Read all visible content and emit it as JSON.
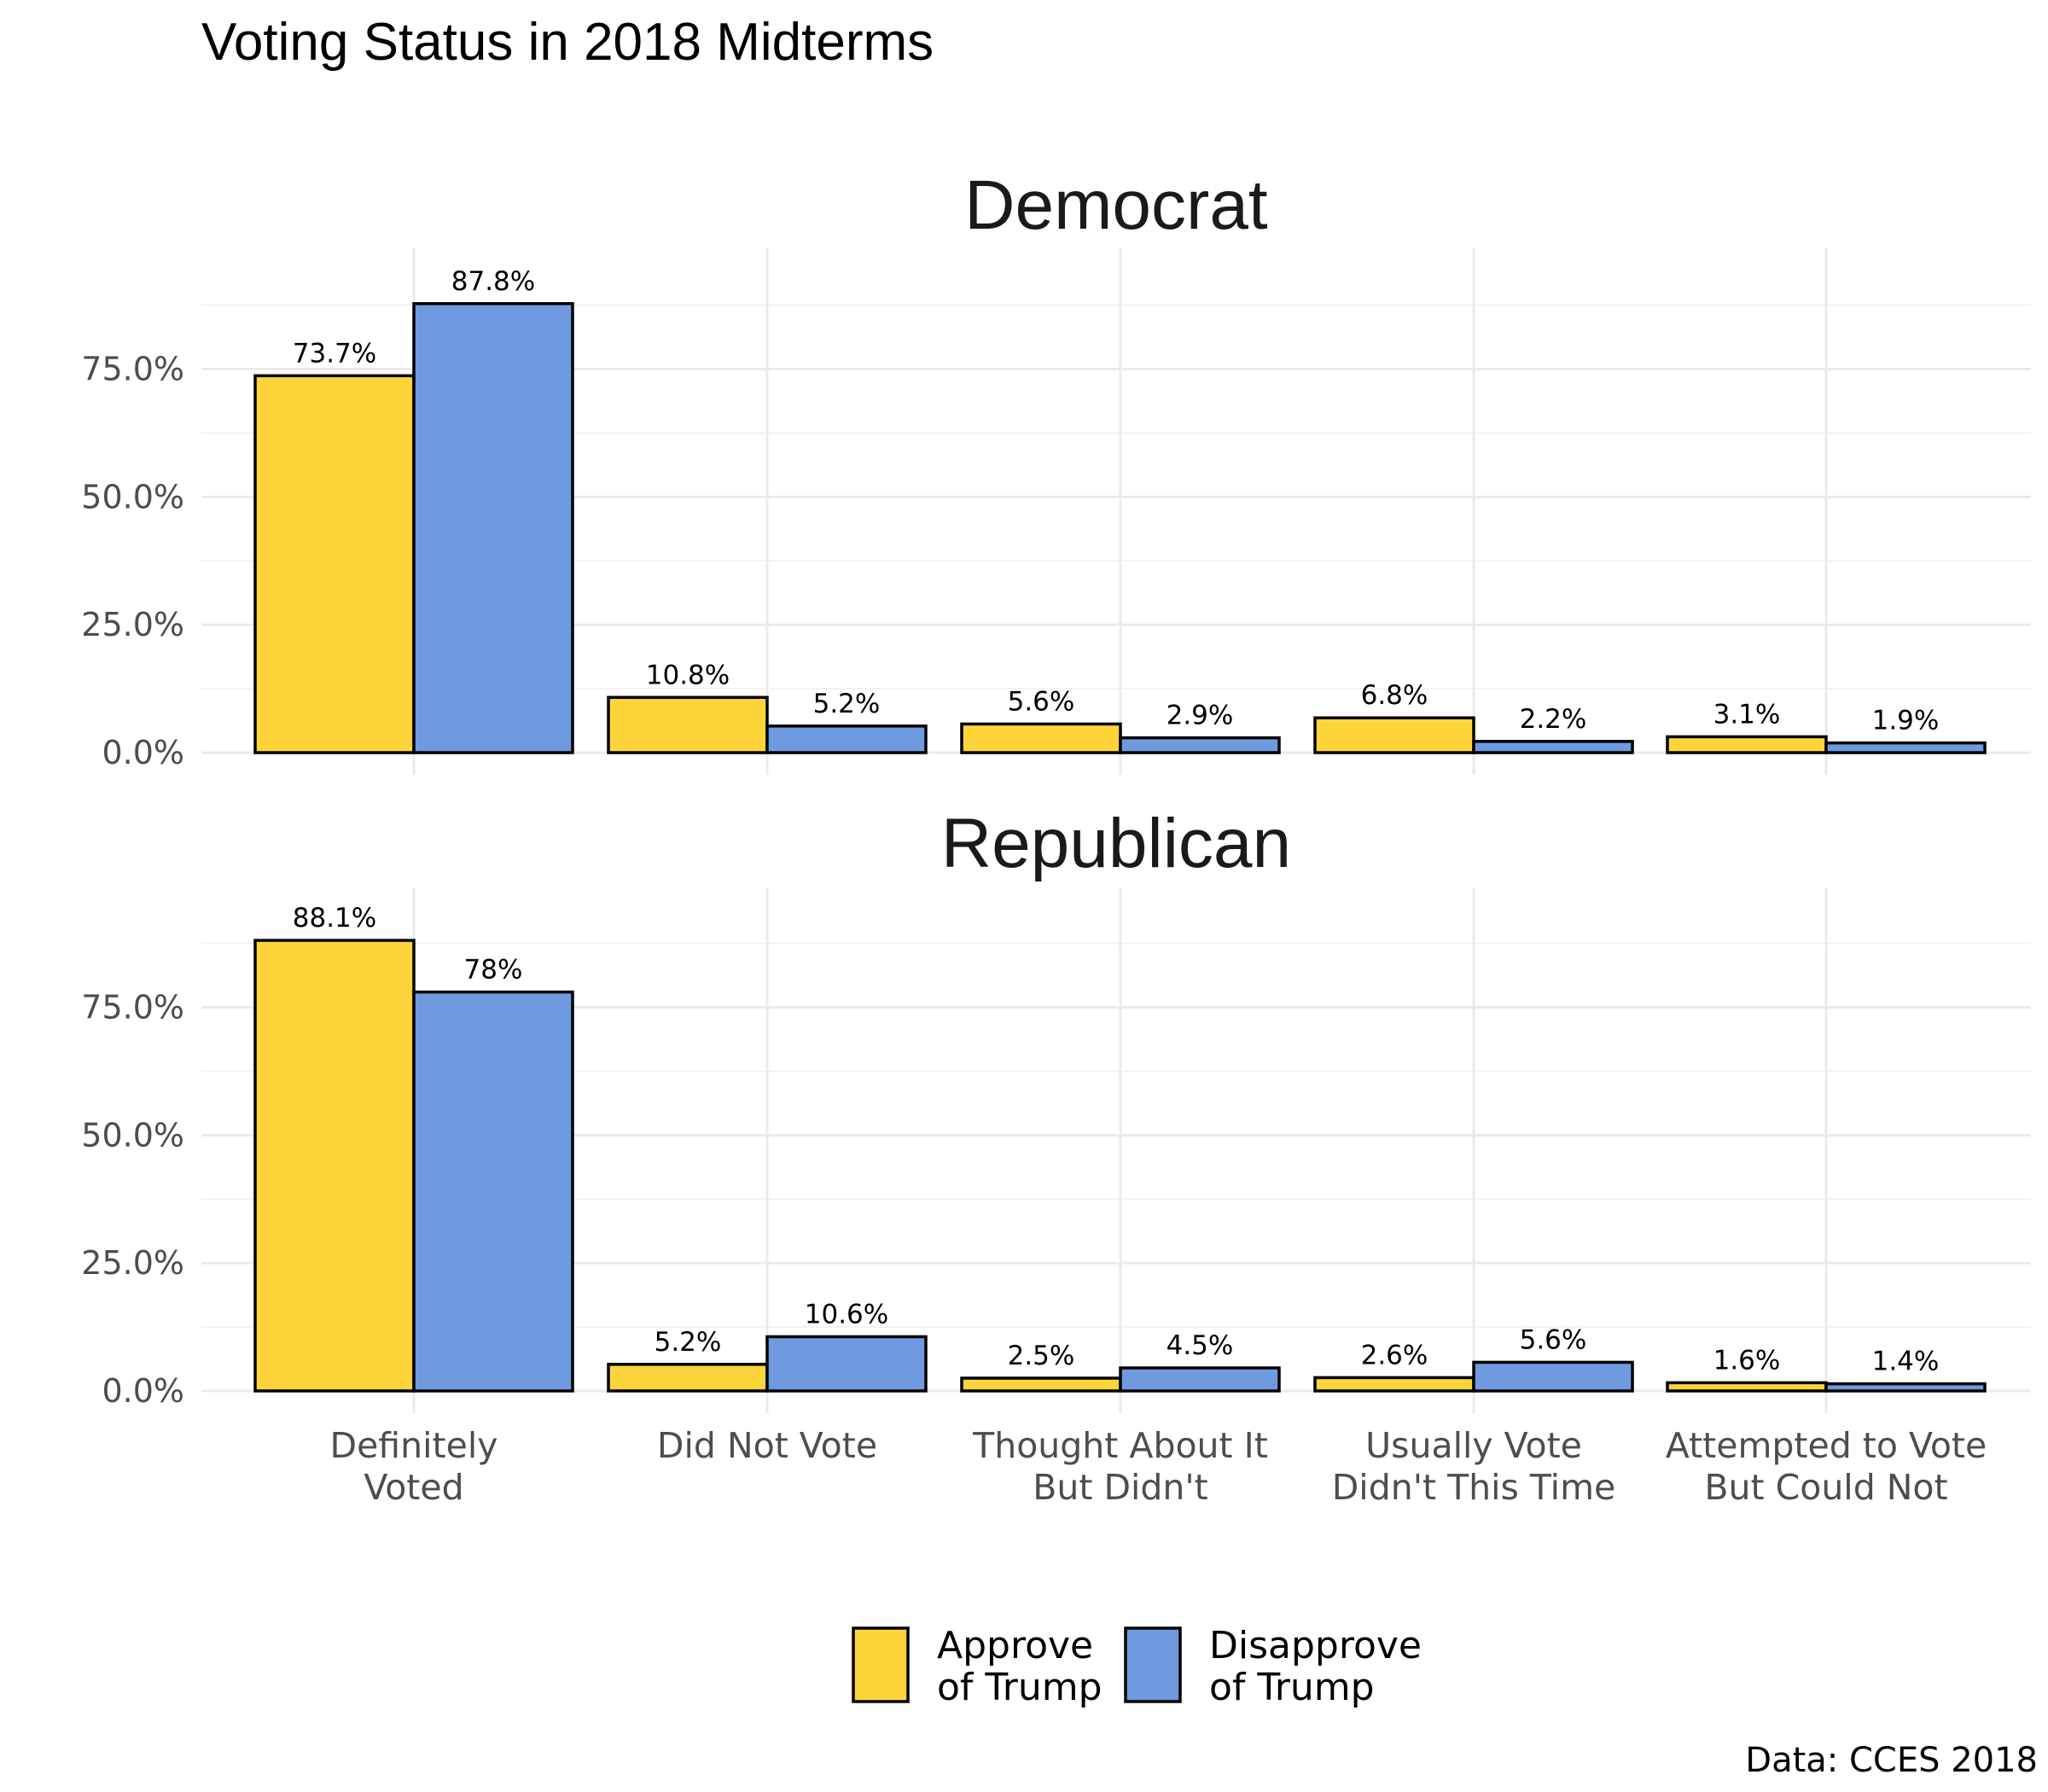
{
  "chart_data": {
    "type": "bar",
    "title": "Voting Status in 2018 Midterms",
    "caption": "Data: CCES 2018",
    "categories": [
      [
        "Definitely",
        "Voted"
      ],
      [
        "Did Not Vote"
      ],
      [
        "Thought About It",
        "But Didn't"
      ],
      [
        "Usually Vote",
        "Didn't This Time"
      ],
      [
        "Attempted to Vote",
        "But Could Not"
      ]
    ],
    "y_ticks": [
      "0.0%",
      "25.0%",
      "50.0%",
      "75.0%"
    ],
    "ylim": [
      0,
      95
    ],
    "grid": true,
    "legend_position": "bottom",
    "series_meta": [
      {
        "name": [
          "Approve",
          "of Trump"
        ],
        "color": "#FDD43A"
      },
      {
        "name": [
          "Disapprove",
          "of Trump"
        ],
        "color": "#6F9AE0"
      }
    ],
    "facets": [
      {
        "title": "Democrat",
        "series": [
          {
            "values": [
              73.7,
              10.8,
              5.6,
              6.8,
              3.1
            ],
            "labels": [
              "73.7%",
              "10.8%",
              "5.6%",
              "6.8%",
              "3.1%"
            ]
          },
          {
            "values": [
              87.8,
              5.2,
              2.9,
              2.2,
              1.9
            ],
            "labels": [
              "87.8%",
              "5.2%",
              "2.9%",
              "2.2%",
              "1.9%"
            ]
          }
        ]
      },
      {
        "title": "Republican",
        "series": [
          {
            "values": [
              88.1,
              5.2,
              2.5,
              2.6,
              1.6
            ],
            "labels": [
              "88.1%",
              "5.2%",
              "2.5%",
              "2.6%",
              "1.6%"
            ]
          },
          {
            "values": [
              78,
              10.6,
              4.5,
              5.6,
              1.4
            ],
            "labels": [
              "78%",
              "10.6%",
              "4.5%",
              "5.6%",
              "1.4%"
            ]
          }
        ]
      }
    ]
  }
}
